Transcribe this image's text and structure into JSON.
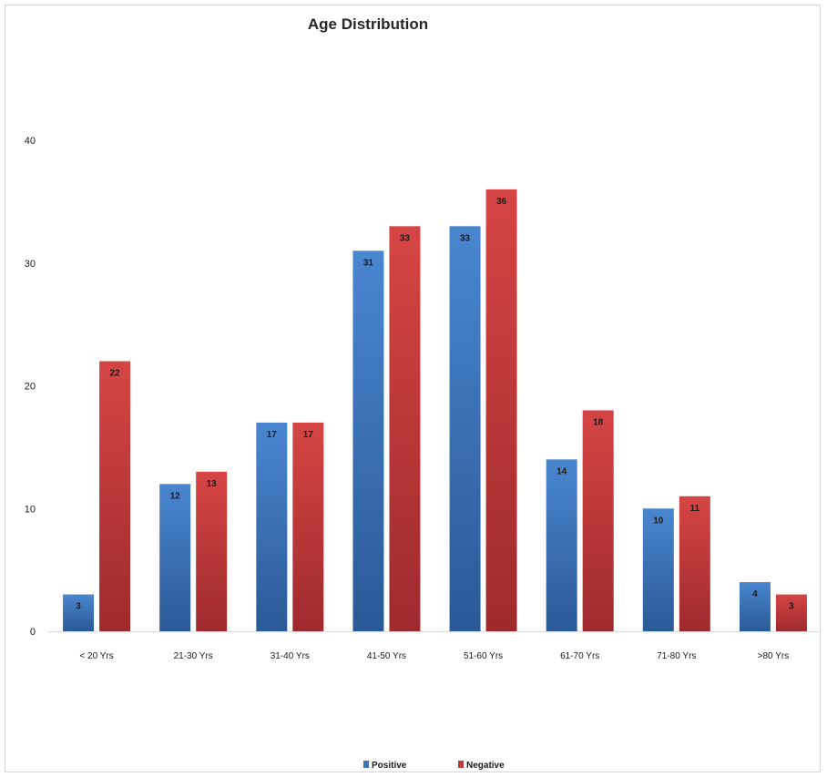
{
  "chart_data": {
    "type": "bar",
    "title": "Age Distribution",
    "xlabel": "",
    "ylabel": "",
    "ylim": [
      0,
      40
    ],
    "yticks": [
      0,
      10,
      20,
      30,
      40
    ],
    "grid": false,
    "legend_position": "bottom",
    "categories": [
      "< 20 Yrs",
      "21-30 Yrs",
      "31-40 Yrs",
      "41-50 Yrs",
      "51-60 Yrs",
      "61-70 Yrs",
      "71-80 Yrs",
      ">80 Yrs"
    ],
    "series": [
      {
        "name": "Positive",
        "color": "#3a73b8",
        "values": [
          3,
          12,
          17,
          31,
          33,
          14,
          10,
          4
        ]
      },
      {
        "name": "Negative",
        "color": "#c0393b",
        "values": [
          22,
          13,
          17,
          33,
          36,
          18,
          11,
          3
        ]
      }
    ]
  }
}
